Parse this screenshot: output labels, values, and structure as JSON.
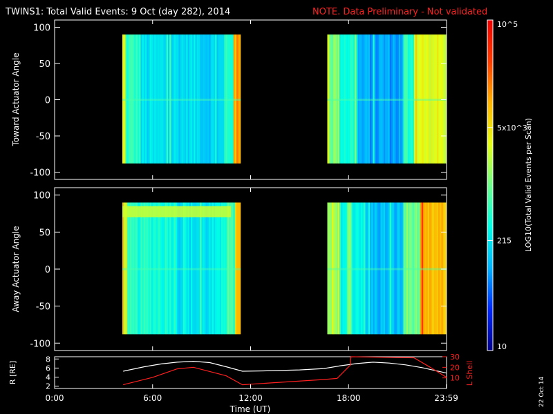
{
  "header": {
    "title": "TWINS1: Total Valid Events:  9 Oct (day 282), 2014",
    "note": "NOTE. Data Preliminary - Not validated"
  },
  "colorbar": {
    "label": "LOG10(Total Valid Events per Scan)",
    "ticks": [
      "10",
      "215",
      "5x10^3",
      "10^5"
    ],
    "tick_values": [
      10,
      215,
      5000,
      100000
    ],
    "range": [
      10,
      100000
    ],
    "scale": "log",
    "colormap": [
      "#00008c",
      "#0028ff",
      "#00b4ff",
      "#00ffe6",
      "#6eff8c",
      "#e6ff14",
      "#ffb400",
      "#ff3c00",
      "#f00000"
    ]
  },
  "corner_date": "22 Oct 14",
  "colors": {
    "background": "#000000",
    "axes": "#ffffff",
    "note": "#ff2020",
    "l_shell": "#ff2020",
    "r_line": "#ffffff"
  },
  "chart_data": [
    {
      "type": "heatmap",
      "panel": "top",
      "ylabel": "Toward Actuator Angle",
      "xlim": [
        0,
        24
      ],
      "ylim": [
        -110,
        110
      ],
      "yticks": [
        -100,
        -50,
        0,
        50,
        100
      ],
      "data_yrange": [
        -88,
        90
      ],
      "blocks": [
        {
          "time_range": [
            4.15,
            11.4
          ],
          "features": [
            {
              "time": [
                4.15,
                4.3
              ],
              "level": 0.62
            },
            {
              "time": [
                4.3,
                5.2
              ],
              "level": 0.42
            },
            {
              "time": [
                5.2,
                9.0
              ],
              "level": 0.32
            },
            {
              "time": [
                9.0,
                10.3
              ],
              "level": 0.3
            },
            {
              "time": [
                10.3,
                10.9
              ],
              "level": 0.42
            },
            {
              "time": [
                10.9,
                11.1
              ],
              "level": 0.72
            },
            {
              "time": [
                11.1,
                11.4
              ],
              "level": 0.78
            }
          ]
        },
        {
          "time_range": [
            16.7,
            23.99
          ],
          "features": [
            {
              "time": [
                16.7,
                17.4
              ],
              "level": 0.52
            },
            {
              "time": [
                17.4,
                18.5
              ],
              "level": 0.4
            },
            {
              "time": [
                18.5,
                21.3
              ],
              "level": 0.24
            },
            {
              "time": [
                21.3,
                22.0
              ],
              "level": 0.42
            },
            {
              "time": [
                22.0,
                23.99
              ],
              "level": 0.62
            }
          ]
        }
      ]
    },
    {
      "type": "heatmap",
      "panel": "middle",
      "ylabel": "Away Actuator Angle",
      "xlim": [
        0,
        24
      ],
      "ylim": [
        -110,
        110
      ],
      "yticks": [
        -100,
        -50,
        0,
        50,
        100
      ],
      "data_yrange": [
        -88,
        90
      ],
      "blocks": [
        {
          "time_range": [
            4.15,
            11.4
          ],
          "features": [
            {
              "time": [
                4.15,
                4.35
              ],
              "level": 0.62
            },
            {
              "time": [
                4.35,
                7.5
              ],
              "level": 0.4
            },
            {
              "time": [
                7.5,
                10.2
              ],
              "level": 0.33
            },
            {
              "time": [
                10.2,
                11.0
              ],
              "level": 0.42
            },
            {
              "time": [
                11.0,
                11.4
              ],
              "level": 0.72
            }
          ],
          "band": {
            "angle_range": [
              70,
              85
            ],
            "time": [
              4.15,
              10.8
            ],
            "level": 0.6
          }
        },
        {
          "time_range": [
            16.7,
            23.99
          ],
          "features": [
            {
              "time": [
                16.7,
                17.4
              ],
              "level": 0.52
            },
            {
              "time": [
                17.4,
                19.0
              ],
              "level": 0.38
            },
            {
              "time": [
                19.0,
                21.3
              ],
              "level": 0.27
            },
            {
              "time": [
                21.3,
                22.3
              ],
              "level": 0.5
            },
            {
              "time": [
                22.3,
                23.99
              ],
              "level": 0.72
            }
          ]
        }
      ]
    },
    {
      "type": "line",
      "panel": "bottom",
      "xlabel": "Time (UT)",
      "xlim": [
        0,
        24
      ],
      "xtick_labels": [
        "0:00",
        "6:00",
        "12:00",
        "18:00",
        "23:59"
      ],
      "xtick_values": [
        0,
        6,
        12,
        18,
        23.983
      ],
      "ylabel": "R [RE]",
      "ylim": [
        1.5,
        8.5
      ],
      "yticks": [
        2,
        4,
        6,
        8
      ],
      "y2label": "L Shell",
      "y2lim": [
        0,
        30
      ],
      "y2ticks": [
        10,
        20,
        30
      ],
      "series": [
        {
          "name": "R",
          "axis": "left",
          "x": [
            4.2,
            5.5,
            6.5,
            7.5,
            8.5,
            9.5,
            10.5,
            11.5,
            13.0,
            15.0,
            16.5,
            17.5,
            18.5,
            19.5,
            20.5,
            21.5,
            22.5,
            23.0,
            23.5,
            24.0
          ],
          "y": [
            5.3,
            6.3,
            6.9,
            7.3,
            7.5,
            7.2,
            6.3,
            5.3,
            5.4,
            5.6,
            5.9,
            6.5,
            7.0,
            7.3,
            7.1,
            6.7,
            6.1,
            5.7,
            5.3,
            4.9
          ]
        },
        {
          "name": "L Shell",
          "axis": "right",
          "x": [
            4.2,
            6.0,
            7.5,
            8.5,
            10.5,
            11.5,
            16.5,
            17.3,
            18.1,
            18.15,
            21.9,
            22.0,
            23.0,
            24.0
          ],
          "y": [
            3.5,
            10.5,
            18.5,
            20.0,
            12.0,
            3.5,
            8.5,
            9.5,
            22.0,
            30.0,
            29.0,
            29.0,
            20.0,
            10.5
          ]
        }
      ]
    }
  ]
}
